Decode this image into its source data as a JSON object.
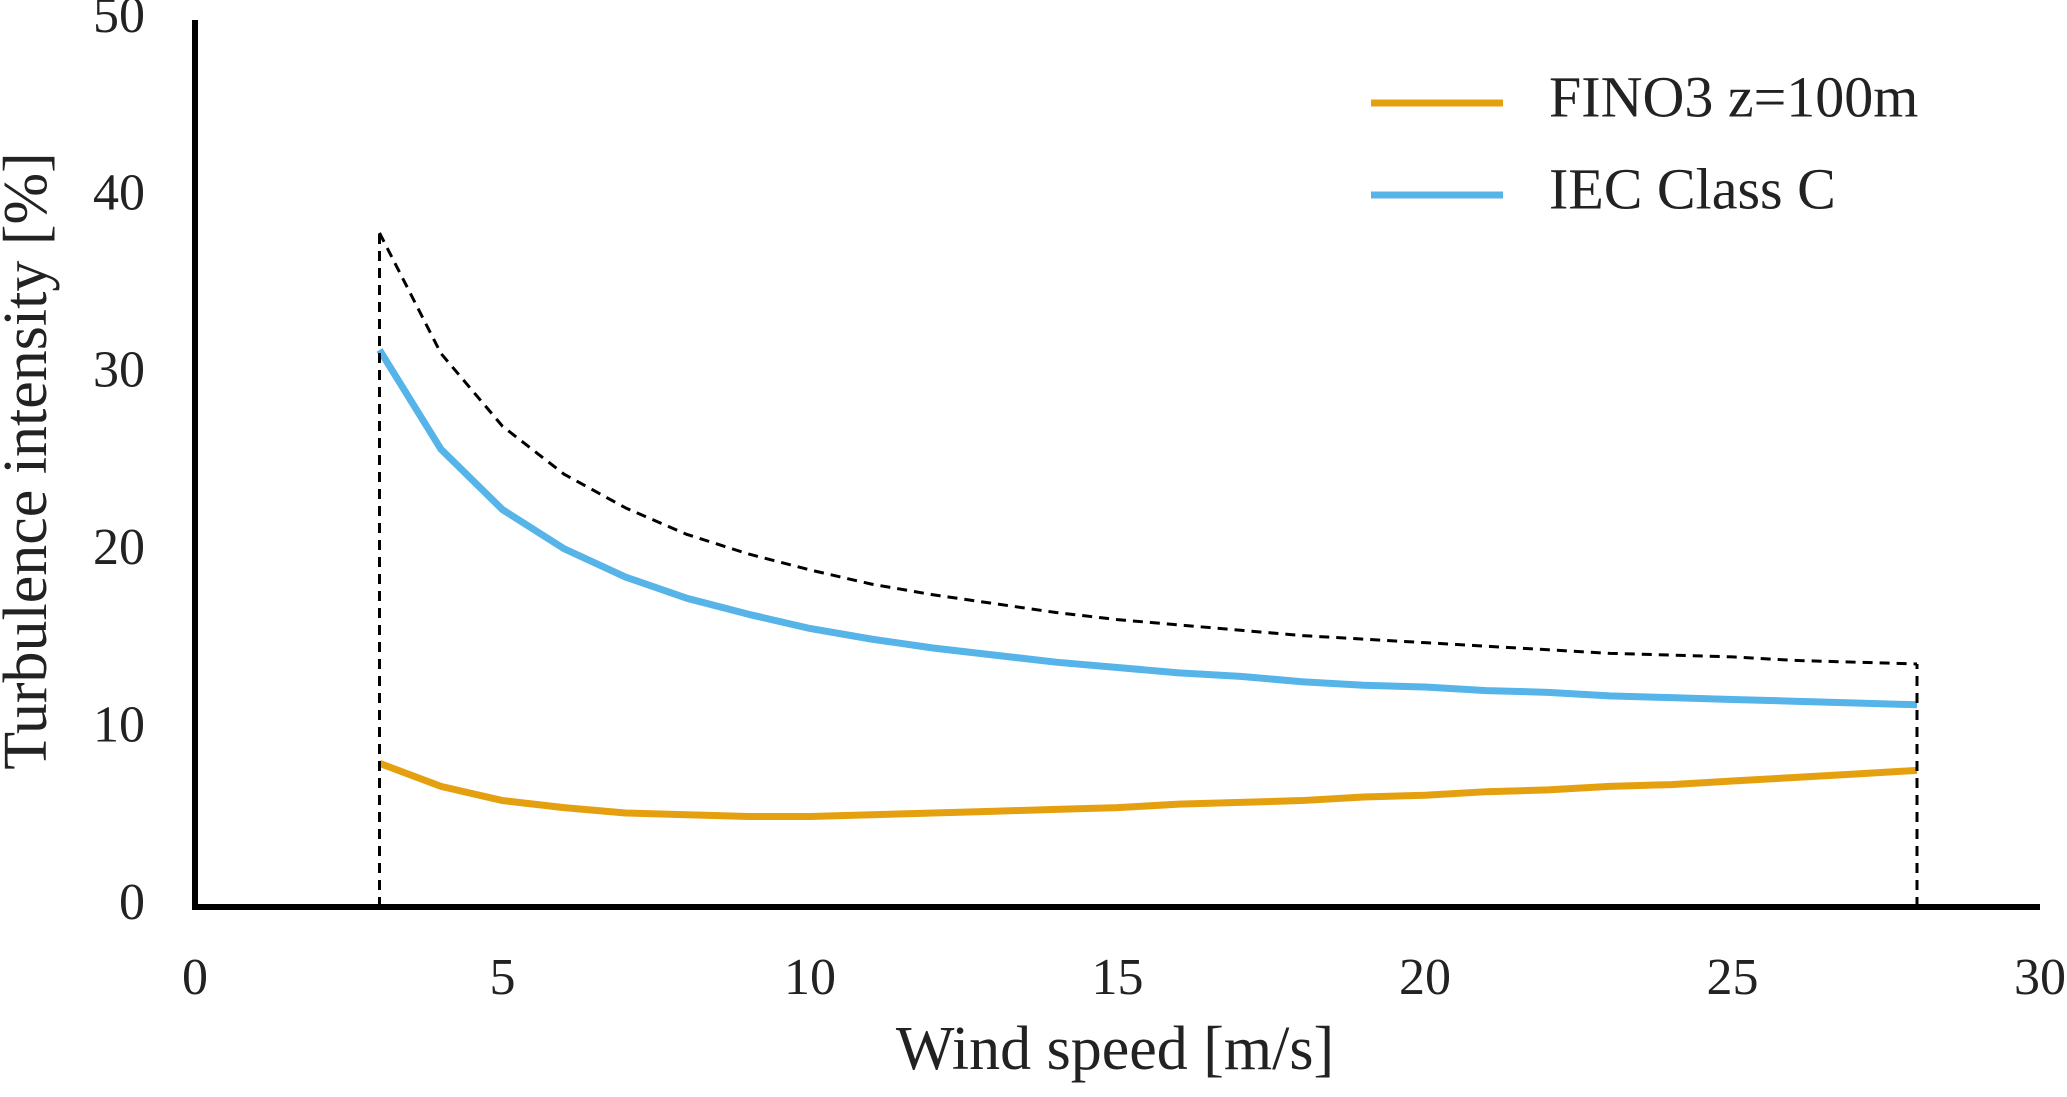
{
  "chart_data": {
    "type": "line",
    "x_label": "Wind speed [m/s]",
    "y_label": "Turbulence intensity [%]",
    "x": [
      3,
      4,
      5,
      6,
      7,
      8,
      9,
      10,
      11,
      12,
      13,
      14,
      15,
      16,
      17,
      18,
      19,
      20,
      21,
      22,
      23,
      24,
      25,
      26,
      27,
      28
    ],
    "series": [
      {
        "name": "FINO3 z=100m",
        "color": "#e5a010",
        "values": [
          8.1,
          6.8,
          6.0,
          5.6,
          5.3,
          5.2,
          5.1,
          5.1,
          5.2,
          5.3,
          5.4,
          5.5,
          5.6,
          5.8,
          5.9,
          6.0,
          6.2,
          6.3,
          6.5,
          6.6,
          6.8,
          6.9,
          7.1,
          7.3,
          7.5,
          7.7
        ]
      },
      {
        "name": "IEC Class C",
        "color": "#56b4e9",
        "values": [
          31.4,
          25.8,
          22.4,
          20.2,
          18.6,
          17.4,
          16.5,
          15.7,
          15.1,
          14.6,
          14.2,
          13.8,
          13.5,
          13.2,
          13.0,
          12.7,
          12.5,
          12.4,
          12.2,
          12.1,
          11.9,
          11.8,
          11.7,
          11.6,
          11.5,
          11.4
        ]
      },
      {
        "color": "#000000",
        "dashed": true,
        "values": [
          38.0,
          31.2,
          27.1,
          24.4,
          22.5,
          21.0,
          19.9,
          19.0,
          18.2,
          17.6,
          17.1,
          16.6,
          16.2,
          15.9,
          15.6,
          15.3,
          15.1,
          14.9,
          14.7,
          14.5,
          14.3,
          14.2,
          14.1,
          13.9,
          13.8,
          13.7
        ]
      }
    ],
    "xlim": [
      0,
      30
    ],
    "ylim": [
      0,
      50
    ],
    "xticks": [
      0,
      5,
      10,
      15,
      20,
      25,
      30
    ],
    "yticks": [
      0,
      10,
      20,
      30,
      40,
      50
    ],
    "grid": false,
    "legend": "upper right"
  }
}
